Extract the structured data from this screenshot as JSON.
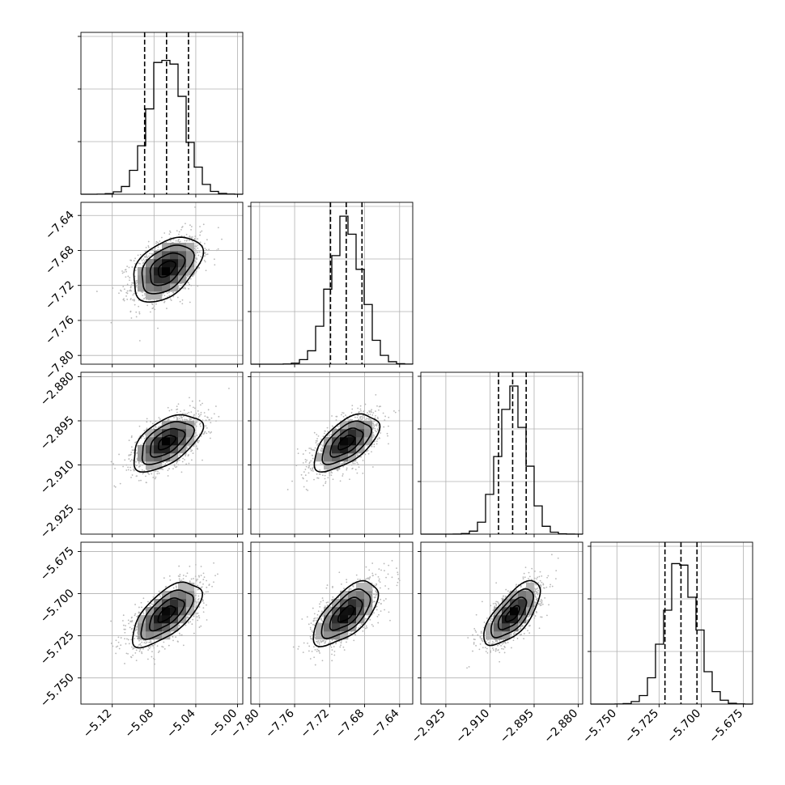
{
  "chart_data": {
    "type": "corner",
    "grid": true,
    "variables": [
      {
        "range": [
          -5.15,
          -4.995
        ],
        "ticks": [
          -5.12,
          -5.08,
          -5.04,
          -5.0
        ],
        "tick_labels": [
          "−5.12",
          "−5.08",
          "−5.04",
          "−5.00"
        ],
        "mean": -5.068,
        "std": 0.0165,
        "quantiles": [
          -5.089,
          -5.068,
          -5.047
        ]
      },
      {
        "range": [
          -7.81,
          -7.625
        ],
        "ticks": [
          -7.8,
          -7.76,
          -7.72,
          -7.68,
          -7.64
        ],
        "tick_labels": [
          "−7.80",
          "−7.76",
          "−7.72",
          "−7.68",
          "−7.64"
        ],
        "mean": -7.701,
        "std": 0.0185,
        "quantiles": [
          -7.719,
          -7.701,
          -7.683
        ]
      },
      {
        "range": [
          -2.9335,
          -2.8785
        ],
        "ticks": [
          -2.925,
          -2.91,
          -2.895,
          -2.88
        ],
        "tick_labels": [
          "−2.925",
          "−2.910",
          "−2.895",
          "−2.880"
        ],
        "mean": -2.9023,
        "std": 0.0048,
        "quantiles": [
          -2.9071,
          -2.9023,
          -2.8977
        ]
      },
      {
        "range": [
          -5.7655,
          -5.6695
        ],
        "ticks": [
          -5.75,
          -5.725,
          -5.7,
          -5.675
        ],
        "tick_labels": [
          "−5.750",
          "−5.725",
          "−5.700",
          "−5.675"
        ],
        "mean": -5.712,
        "std": 0.0095,
        "quantiles": [
          -5.7215,
          -5.712,
          -5.7025
        ]
      }
    ],
    "correlations": [
      [
        1.0,
        0.45,
        0.55,
        0.65
      ],
      [
        0.45,
        1.0,
        0.6,
        0.65
      ],
      [
        0.55,
        0.6,
        1.0,
        0.7
      ],
      [
        0.65,
        0.65,
        0.7,
        1.0
      ]
    ]
  }
}
